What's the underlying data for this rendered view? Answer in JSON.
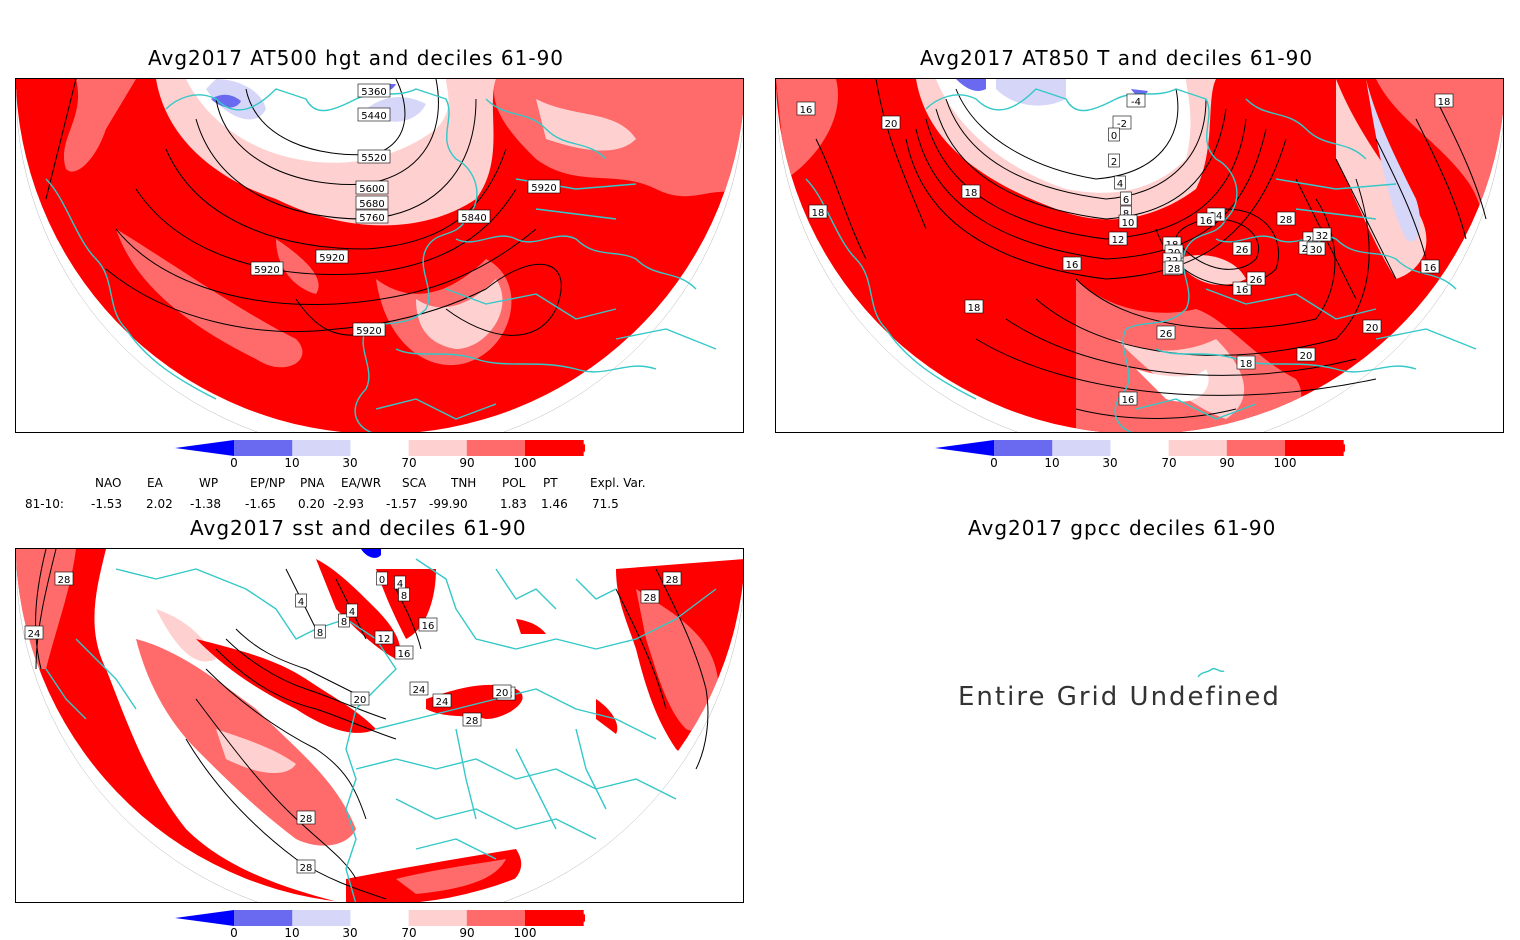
{
  "colors": {
    "d0": "#0000ff",
    "d10": "#6a6af0",
    "d30": "#d6d6f8",
    "d70": "#ffffff",
    "d90": "#ffd0d0",
    "d100": "#ff6a6a",
    "dmax": "#ff0000",
    "coast": "#35c8c8",
    "contour": "#000000"
  },
  "panels": [
    {
      "title": "Avg2017 AT500 hgt and deciles 61-90",
      "labels": [
        "5360",
        "5440",
        "5520",
        "5600",
        "5680",
        "5760",
        "5840",
        "5920",
        "5920",
        "5920",
        "5920"
      ]
    },
    {
      "title": "Avg2017 AT850 T and deciles 61-90",
      "labels": [
        "16",
        "20",
        "18",
        "18",
        "18",
        "16",
        "-4",
        "-2",
        "0",
        "2",
        "4",
        "6",
        "8",
        "10",
        "12",
        "14",
        "16",
        "18",
        "20",
        "22",
        "24",
        "28",
        "26",
        "24",
        "22",
        "16",
        "26",
        "32",
        "30",
        "28",
        "26",
        "18",
        "20",
        "20",
        "18",
        "16",
        "16"
      ]
    },
    {
      "title": "Avg2017 sst and deciles 61-90",
      "labels": [
        "28",
        "24",
        "4",
        "8",
        "8",
        "4",
        "12",
        "16",
        "16",
        "20",
        "24",
        "24",
        "28",
        "28",
        "28",
        "20",
        "28",
        "0",
        "4",
        "8",
        "28",
        "28"
      ]
    },
    {
      "title": "Avg2017 gpcc deciles 61-90",
      "message": "Entire Grid Undefined"
    }
  ],
  "colorbar": {
    "ticks": [
      "0",
      "10",
      "30",
      "70",
      "90",
      "100"
    ]
  },
  "indices": {
    "headers": [
      "NAO",
      "EA",
      "WP",
      "EP/NP",
      "PNA",
      "EA/WR",
      "SCA",
      "TNH",
      "POL",
      "PT",
      "Expl. Var."
    ],
    "period": "81-10:",
    "values": [
      "-1.53",
      "2.02",
      "-1.38",
      "-1.65",
      "0.20",
      "-2.93",
      "-1.57",
      "-99.90",
      "1.83",
      "1.46",
      "71.5"
    ]
  }
}
